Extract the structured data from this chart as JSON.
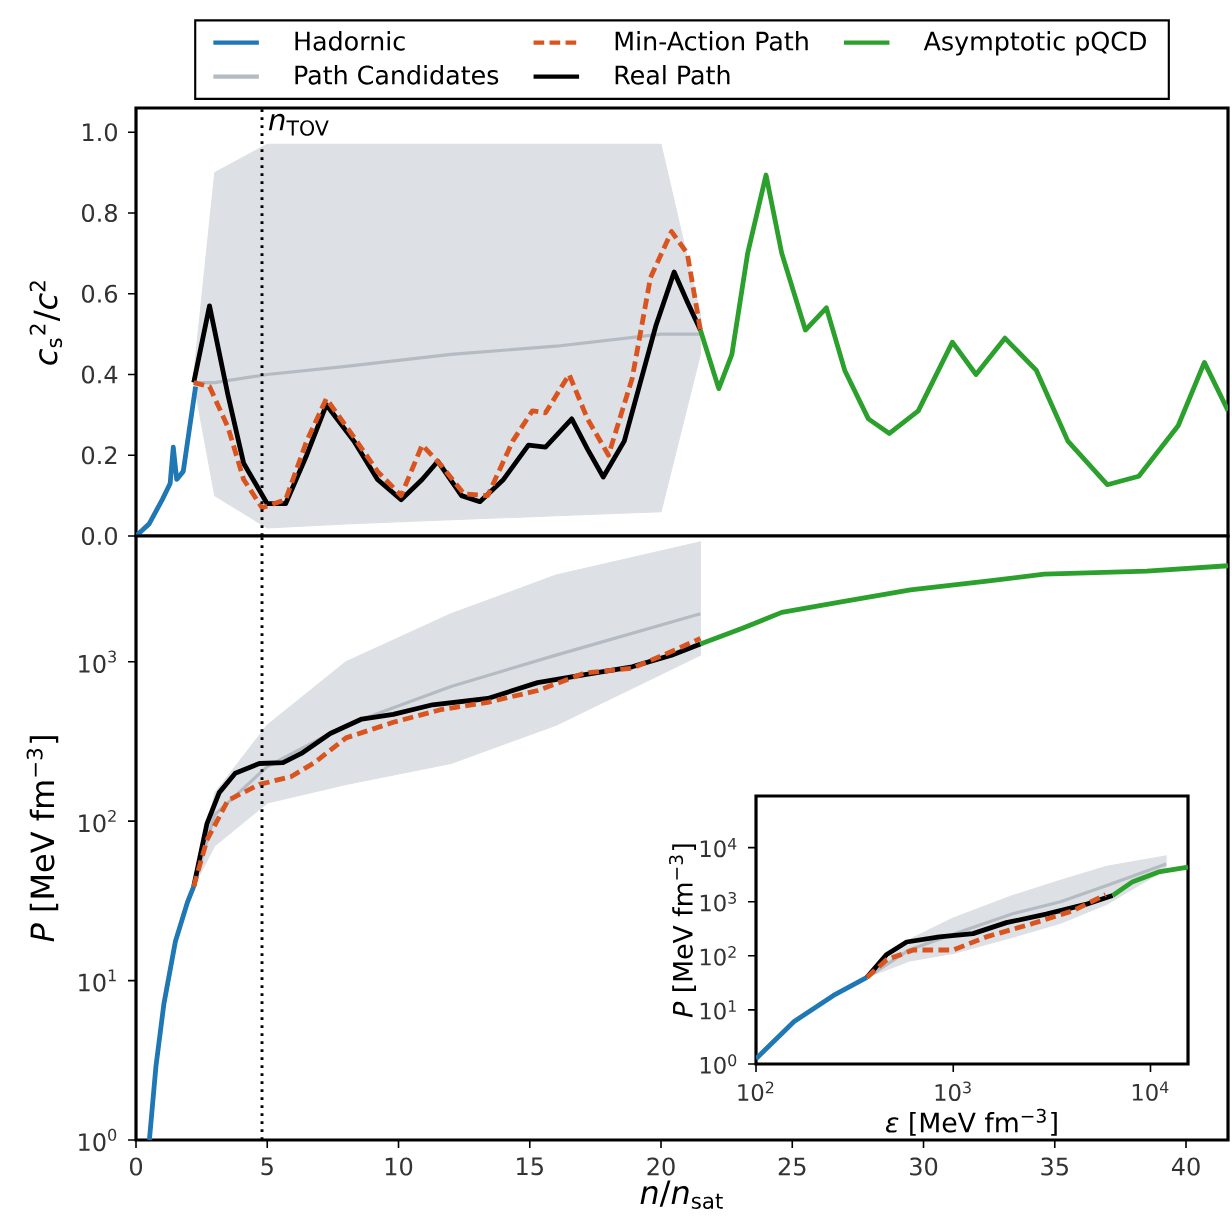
{
  "chart_data": [
    {
      "type": "line",
      "ylabel": "*c*$_{s}$$^{2}$/*c*$^{2}$",
      "xlim": [
        0,
        41.6
      ],
      "ylim": [
        0,
        1.06
      ],
      "yticks": [
        {
          "value": 0,
          "label": "0.0"
        },
        {
          "value": 0.2,
          "label": "0.2"
        },
        {
          "value": 0.4,
          "label": "0.4"
        },
        {
          "value": 0.6,
          "label": "0.6"
        },
        {
          "value": 0.8,
          "label": "0.8"
        },
        {
          "value": 1,
          "label": "1.0"
        }
      ],
      "tick_labels": "y",
      "legend": "top",
      "ref_lines": [
        {
          "axis": "x",
          "value": 4.8,
          "label": "*n*$_{TOV}$",
          "color": "#000000",
          "line_style": "dotted"
        }
      ],
      "series": [
        {
          "name": "Hadornic",
          "color": "#1f77b4",
          "x": [
            0,
            0.5,
            1.0,
            1.3,
            1.42,
            1.55,
            1.8,
            2.0,
            2.27
          ],
          "values": [
            0,
            0.03,
            0.09,
            0.13,
            0.22,
            0.14,
            0.16,
            0.25,
            0.37
          ]
        },
        {
          "name": "Path Candidates",
          "color": "#b4bbc2",
          "x": [
            2.2,
            3,
            5,
            8,
            12,
            16,
            20,
            21.5
          ],
          "values": [
            0.38,
            0.38,
            0.4,
            0.42,
            0.45,
            0.47,
            0.5,
            0.5
          ],
          "lower": [
            0.38,
            0.1,
            0.02,
            0.03,
            0.04,
            0.05,
            0.06,
            0.45
          ],
          "upper": [
            0.4,
            0.9,
            0.97,
            0.97,
            0.97,
            0.97,
            0.97,
            0.55
          ]
        },
        {
          "name": "Min-Action Path",
          "color": "#d9541e",
          "line_style": "dashed",
          "x": [
            2.2,
            2.8,
            3.5,
            4.1,
            4.8,
            5.7,
            6.5,
            7.25,
            8.3,
            9.2,
            10.1,
            10.9,
            11.6,
            12.5,
            13.4,
            14.35,
            15.1,
            15.6,
            16.5,
            17.2,
            18.0,
            18.9,
            19.6,
            20.4,
            21.0,
            21.5
          ],
          "values": [
            0.38,
            0.37,
            0.27,
            0.14,
            0.07,
            0.09,
            0.235,
            0.34,
            0.245,
            0.16,
            0.1,
            0.225,
            0.177,
            0.104,
            0.1,
            0.235,
            0.31,
            0.305,
            0.4,
            0.29,
            0.2,
            0.39,
            0.64,
            0.754,
            0.7,
            0.51
          ]
        },
        {
          "name": "Real Path",
          "color": "#000000",
          "x": [
            2.2,
            2.8,
            3.5,
            4.1,
            5.0,
            5.7,
            6.5,
            7.25,
            8.3,
            9.2,
            10.1,
            10.9,
            11.5,
            12.4,
            13.1,
            14.0,
            14.95,
            15.6,
            16.6,
            17.2,
            17.8,
            18.6,
            19.8,
            20.5,
            21.0,
            21.5
          ],
          "values": [
            0.38,
            0.57,
            0.35,
            0.18,
            0.08,
            0.08,
            0.2,
            0.325,
            0.235,
            0.14,
            0.09,
            0.14,
            0.185,
            0.1,
            0.085,
            0.14,
            0.225,
            0.22,
            0.29,
            0.215,
            0.146,
            0.235,
            0.52,
            0.654,
            0.58,
            0.51
          ]
        },
        {
          "name": "Asymptotic pQCD",
          "color": "#2ca02c",
          "x": [
            21.5,
            22.2,
            22.7,
            23.3,
            24.0,
            24.6,
            25.5,
            26.3,
            27.0,
            27.9,
            28.7,
            29.8,
            31.1,
            32.0,
            33.1,
            34.3,
            35.5,
            37.0,
            38.2,
            39.7,
            40.7,
            41.6
          ],
          "values": [
            0.51,
            0.365,
            0.45,
            0.7,
            0.894,
            0.7,
            0.51,
            0.565,
            0.41,
            0.29,
            0.254,
            0.31,
            0.48,
            0.4,
            0.49,
            0.41,
            0.235,
            0.127,
            0.148,
            0.273,
            0.43,
            0.31
          ]
        }
      ]
    },
    {
      "type": "line",
      "xlabel": "*n*/*n*$_{sat}$",
      "ylabel": "*P* [MeV fm$^{−3}$]",
      "log": "y",
      "xlim": [
        0,
        41.6
      ],
      "ylim": [
        1,
        6150
      ],
      "xticks": [
        0,
        5,
        10,
        15,
        20,
        25,
        30,
        35,
        40
      ],
      "yticks": [
        {
          "value": 1,
          "label": "10$^{0}$"
        },
        {
          "value": 10,
          "label": "10$^{1}$"
        },
        {
          "value": 100,
          "label": "10$^{2}$"
        },
        {
          "value": 1000,
          "label": "10$^{3}$"
        }
      ],
      "ref_lines": [
        {
          "axis": "x",
          "value": 4.8,
          "color": "#000000",
          "line_style": "dotted"
        }
      ],
      "series": [
        {
          "color": "#1f77b4",
          "x": [
            0.51,
            0.76,
            1.06,
            1.5,
            1.96,
            2.2
          ],
          "values": [
            1,
            2.9,
            7.1,
            17.6,
            31,
            39
          ]
        },
        {
          "color": "#b4bbc2",
          "x": [
            2.2,
            3,
            5,
            8,
            12,
            16,
            21.5
          ],
          "values": [
            39,
            110,
            220,
            400,
            700,
            1100,
            2000
          ],
          "lower": [
            39,
            70,
            130,
            170,
            230,
            400,
            1100
          ],
          "upper": [
            40,
            150,
            400,
            1000,
            2000,
            3500,
            5650
          ]
        },
        {
          "color": "#d9541e",
          "line_style": "dashed",
          "x": [
            2.2,
            2.7,
            3.5,
            4.7,
            5.9,
            6.8,
            8.0,
            9.8,
            11.6,
            13.4,
            15.3,
            17.1,
            18.9,
            20.4,
            21.5
          ],
          "values": [
            39,
            76,
            135,
            170,
            190,
            233,
            333,
            417,
            500,
            556,
            660,
            850,
            910,
            1160,
            1400
          ]
        },
        {
          "color": "#000000",
          "x": [
            2.2,
            2.7,
            3.17,
            3.78,
            4.7,
            5.6,
            6.3,
            7.4,
            8.6,
            9.8,
            11.3,
            13.4,
            15.3,
            17.1,
            18.9,
            20.4,
            21.5
          ],
          "values": [
            39,
            96,
            151,
            200,
            230,
            233,
            266,
            355,
            437,
            468,
            537,
            588,
            740,
            830,
            930,
            1100,
            1290
          ]
        },
        {
          "color": "#2ca02c",
          "x": [
            21.5,
            23.1,
            24.6,
            26.7,
            29.5,
            32.5,
            34.6,
            38.5,
            41.6
          ],
          "values": [
            1290,
            1620,
            2040,
            2350,
            2820,
            3220,
            3540,
            3700,
            4000
          ]
        }
      ]
    },
    {
      "type": "line",
      "xlabel": "*ε* [MeV fm$^{−3}$]",
      "ylabel": "*P* [MeV fm$^{−3}$]",
      "log": "xy",
      "xlim": [
        100,
        15500
      ],
      "ylim": [
        1,
        90000
      ],
      "xticks": [
        {
          "value": 100,
          "label": "10$^{2}$"
        },
        {
          "value": 1000,
          "label": "10$^{3}$"
        },
        {
          "value": 10000,
          "label": "10$^{4}$"
        }
      ],
      "yticks": [
        {
          "value": 1,
          "label": "10$^{0}$"
        },
        {
          "value": 10,
          "label": "10$^{1}$"
        },
        {
          "value": 100,
          "label": "10$^{2}$"
        },
        {
          "value": 1000,
          "label": "10$^{3}$"
        },
        {
          "value": 10000,
          "label": "10$^{4}$"
        }
      ],
      "series": [
        {
          "color": "#1f77b4",
          "x": [
            100,
            156,
            247,
            365
          ],
          "values": [
            1.25,
            6.1,
            18.5,
            40
          ]
        },
        {
          "color": "#b4bbc2",
          "x": [
            365,
            600,
            1000,
            2000,
            3500,
            6000,
            12000
          ],
          "values": [
            40,
            130,
            250,
            600,
            1000,
            2000,
            5000
          ],
          "lower": [
            40,
            80,
            110,
            220,
            400,
            900,
            4000
          ],
          "upper": [
            40,
            200,
            500,
            1300,
            2500,
            4500,
            7000
          ]
        },
        {
          "color": "#d9541e",
          "line_style": "dashed",
          "x": [
            365,
            460,
            627,
            1000,
            1470,
            2500,
            4040,
            5920
          ],
          "values": [
            40,
            85,
            128,
            128,
            224,
            390,
            680,
            1350
          ]
        },
        {
          "color": "#000000",
          "x": [
            365,
            460,
            580,
            850,
            1260,
            1860,
            2960,
            4690,
            6430
          ],
          "values": [
            40,
            106,
            180,
            224,
            257,
            410,
            590,
            890,
            1300
          ]
        },
        {
          "color": "#2ca02c",
          "x": [
            6430,
            8130,
            11000,
            15500
          ],
          "values": [
            1300,
            2350,
            3550,
            4350
          ]
        }
      ]
    }
  ]
}
